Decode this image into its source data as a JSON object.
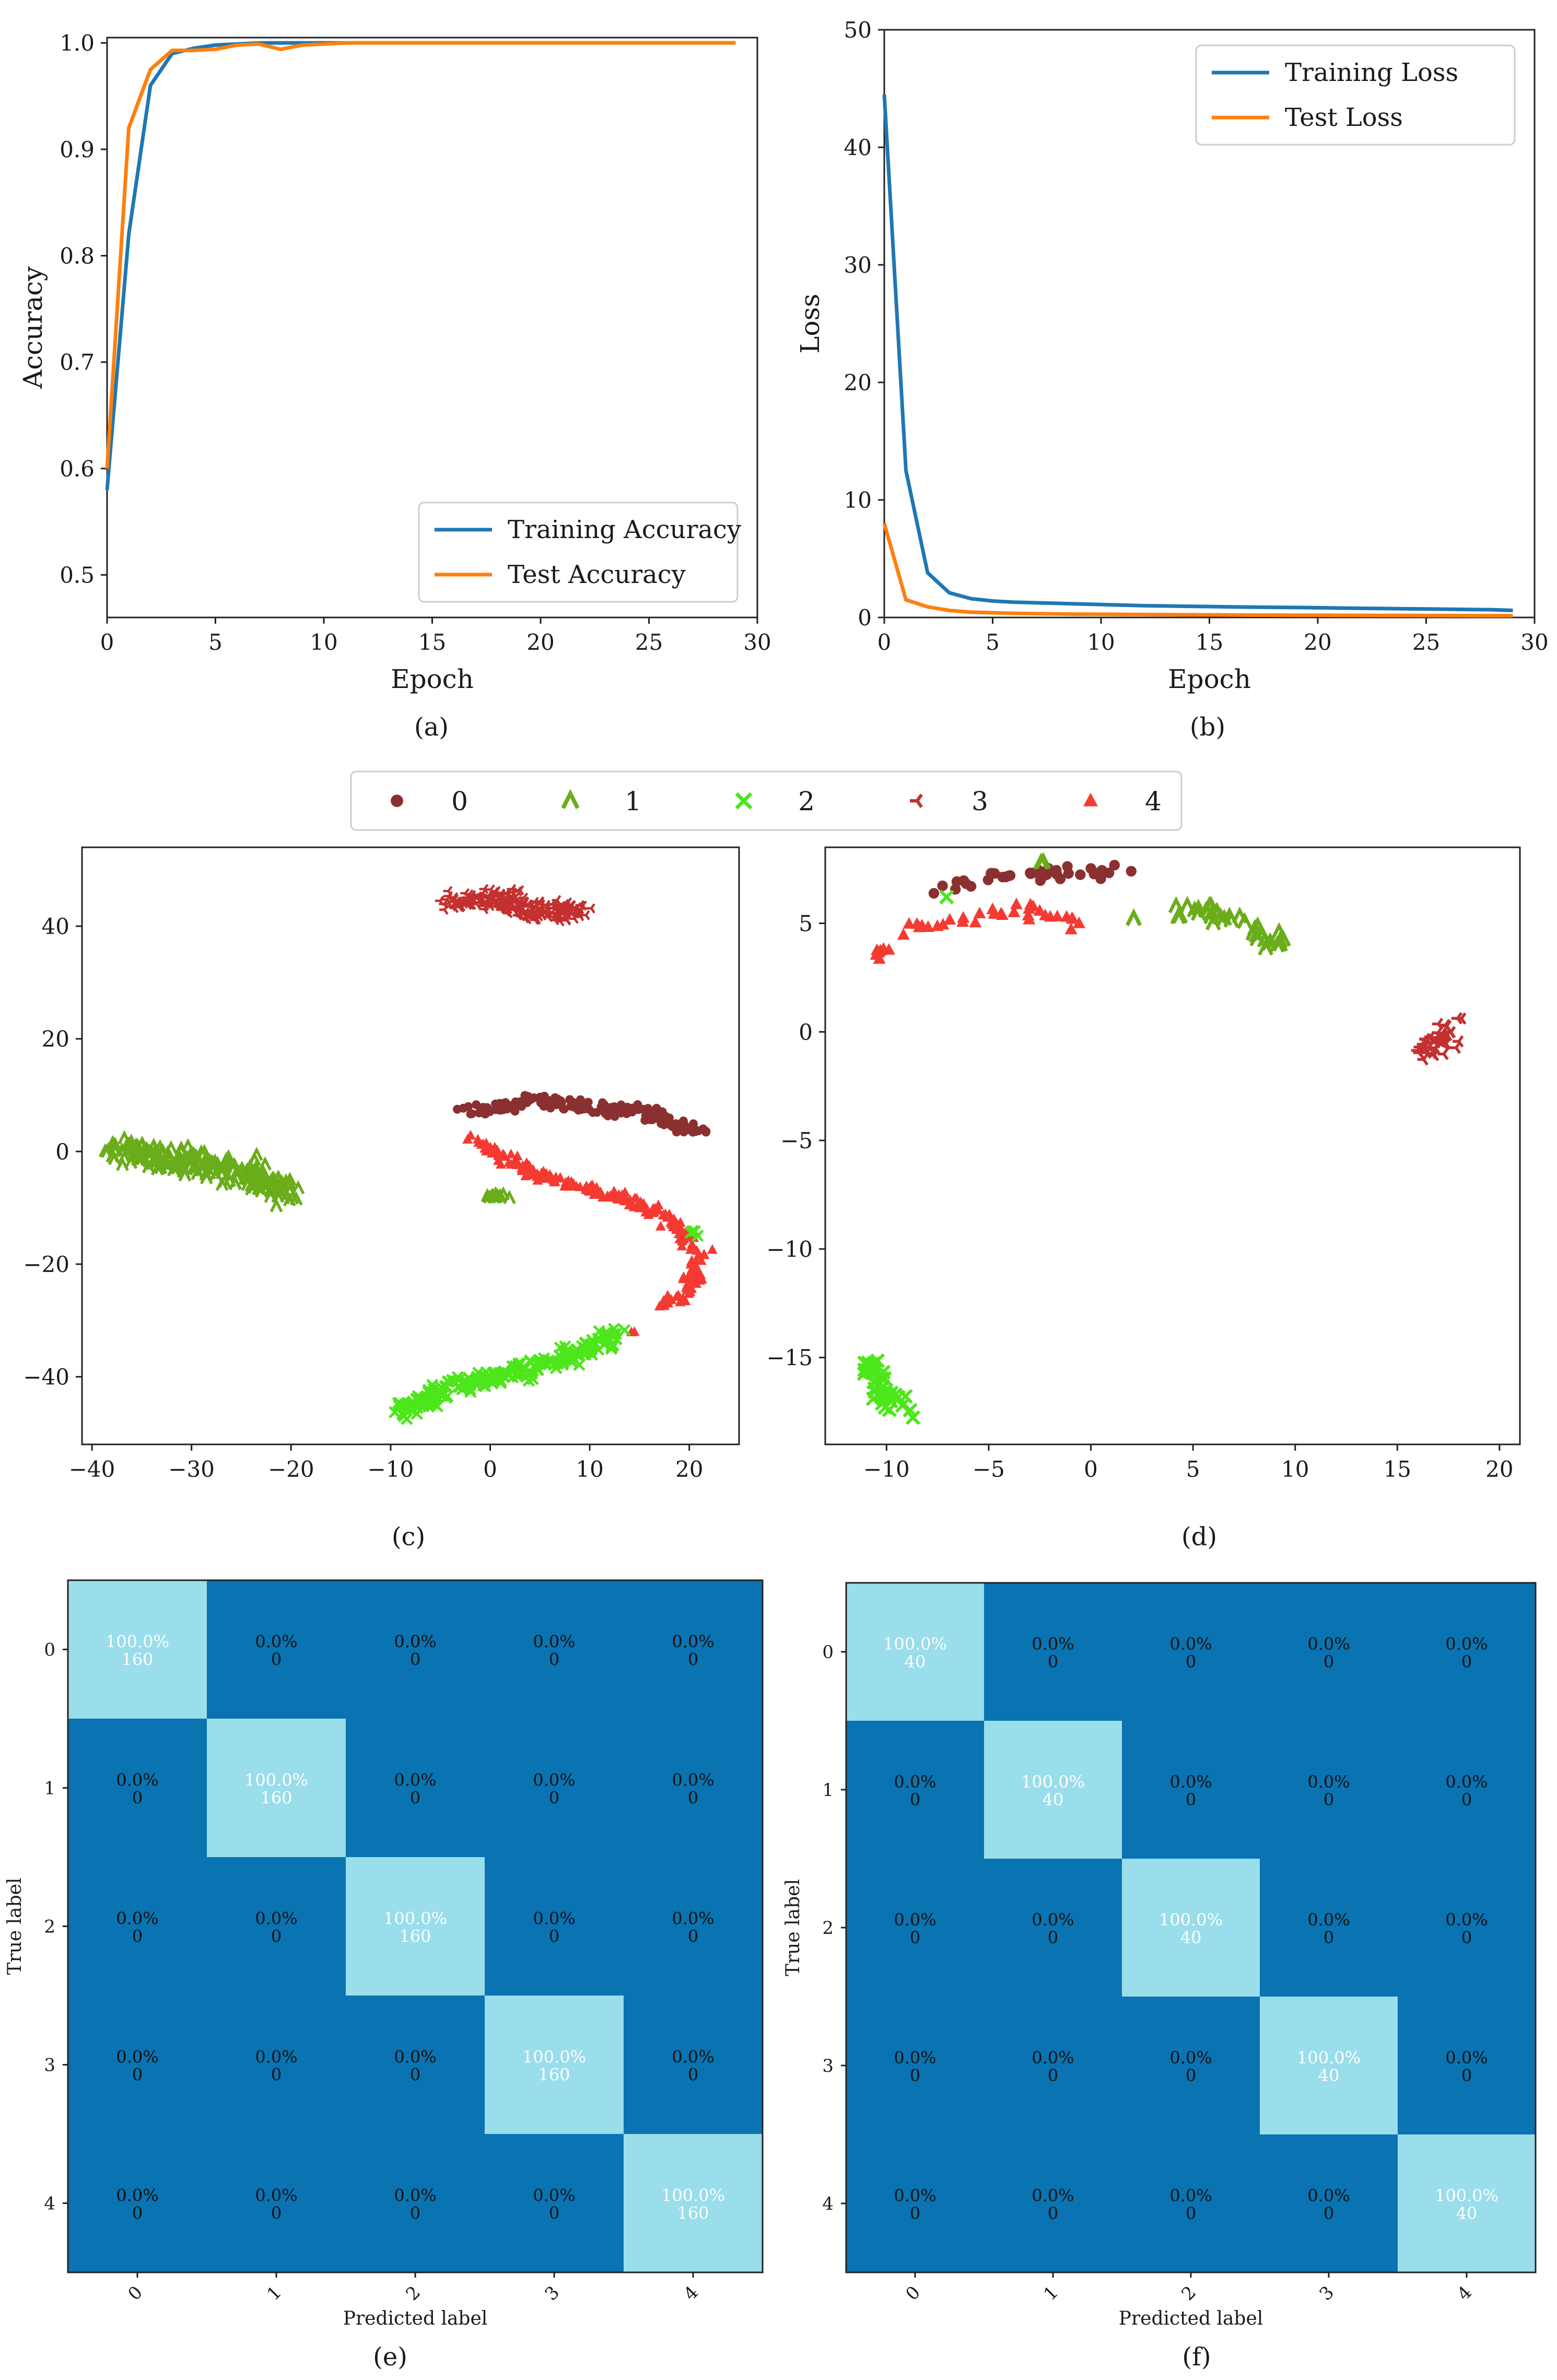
{
  "colors": {
    "training": "#1f77b4",
    "test": "#ff7f0e",
    "class_0": "#8b3030",
    "class_1": "#6aad1a",
    "class_2": "#4ce61a",
    "class_3": "#c43030",
    "class_4": "#f53a32",
    "cm_dark": "#0a73b1",
    "cm_light": "#9addeb"
  },
  "chart_data": [
    {
      "id": "a",
      "type": "line",
      "caption": "(a)",
      "xlabel": "Epoch",
      "ylabel": "Accuracy",
      "xlim": [
        0,
        30
      ],
      "ylim": [
        0.46,
        1.005
      ],
      "xticks": [
        0,
        5,
        10,
        15,
        20,
        25,
        30
      ],
      "yticks": [
        0.5,
        0.6,
        0.7,
        0.8,
        0.9,
        1.0
      ],
      "ytick_labels": [
        "0.5",
        "0.6",
        "0.7",
        "0.8",
        "0.9",
        "1.0"
      ],
      "legend_position": "lower-right",
      "series": [
        {
          "name": "Training Accuracy",
          "color_key": "training",
          "x": [
            0,
            1,
            2,
            3,
            4,
            5,
            6,
            7,
            8,
            9,
            10,
            11,
            12,
            13,
            14,
            15,
            16,
            17,
            18,
            19,
            20,
            21,
            22,
            23,
            24,
            25,
            26,
            27,
            28,
            29
          ],
          "values": [
            0.58,
            0.82,
            0.96,
            0.99,
            0.995,
            0.998,
            0.999,
            1.0,
            1.0,
            1.0,
            1.0,
            1.0,
            1.0,
            1.0,
            1.0,
            1.0,
            1.0,
            1.0,
            1.0,
            1.0,
            1.0,
            1.0,
            1.0,
            1.0,
            1.0,
            1.0,
            1.0,
            1.0,
            1.0,
            1.0
          ]
        },
        {
          "name": "Test Accuracy",
          "color_key": "test",
          "x": [
            0,
            1,
            2,
            3,
            4,
            5,
            6,
            7,
            8,
            9,
            10,
            11,
            12,
            13,
            14,
            15,
            16,
            17,
            18,
            19,
            20,
            21,
            22,
            23,
            24,
            25,
            26,
            27,
            28,
            29
          ],
          "values": [
            0.6,
            0.92,
            0.975,
            0.993,
            0.993,
            0.994,
            0.998,
            0.999,
            0.994,
            0.998,
            0.999,
            1.0,
            1.0,
            1.0,
            1.0,
            1.0,
            1.0,
            1.0,
            1.0,
            1.0,
            1.0,
            1.0,
            1.0,
            1.0,
            1.0,
            1.0,
            1.0,
            1.0,
            1.0,
            1.0
          ]
        }
      ]
    },
    {
      "id": "b",
      "type": "line",
      "caption": "(b)",
      "xlabel": "Epoch",
      "ylabel": "Loss",
      "xlim": [
        0,
        30
      ],
      "ylim": [
        0,
        50
      ],
      "xticks": [
        0,
        5,
        10,
        15,
        20,
        25,
        30
      ],
      "yticks": [
        0,
        10,
        20,
        30,
        40,
        50
      ],
      "ytick_labels": [
        "0",
        "10",
        "20",
        "30",
        "40",
        "50"
      ],
      "legend_position": "upper-right",
      "series": [
        {
          "name": "Training Loss",
          "color_key": "training",
          "x": [
            0,
            1,
            2,
            3,
            4,
            5,
            6,
            7,
            8,
            9,
            10,
            11,
            12,
            13,
            14,
            15,
            16,
            17,
            18,
            19,
            20,
            21,
            22,
            23,
            24,
            25,
            26,
            27,
            28,
            29
          ],
          "values": [
            44.5,
            12.5,
            3.8,
            2.1,
            1.6,
            1.4,
            1.3,
            1.25,
            1.2,
            1.15,
            1.1,
            1.05,
            1.0,
            0.98,
            0.95,
            0.93,
            0.9,
            0.88,
            0.86,
            0.85,
            0.83,
            0.8,
            0.78,
            0.76,
            0.74,
            0.72,
            0.7,
            0.68,
            0.66,
            0.6
          ]
        },
        {
          "name": "Test Loss",
          "color_key": "test",
          "x": [
            0,
            1,
            2,
            3,
            4,
            5,
            6,
            7,
            8,
            9,
            10,
            11,
            12,
            13,
            14,
            15,
            16,
            17,
            18,
            19,
            20,
            21,
            22,
            23,
            24,
            25,
            26,
            27,
            28,
            29
          ],
          "values": [
            8.0,
            1.5,
            0.9,
            0.6,
            0.45,
            0.4,
            0.35,
            0.32,
            0.3,
            0.28,
            0.27,
            0.26,
            0.25,
            0.24,
            0.23,
            0.22,
            0.21,
            0.2,
            0.2,
            0.19,
            0.19,
            0.18,
            0.18,
            0.17,
            0.17,
            0.16,
            0.16,
            0.15,
            0.15,
            0.15
          ]
        }
      ]
    },
    {
      "id": "c",
      "type": "scatter",
      "caption": "(c)",
      "xlim": [
        -41,
        25
      ],
      "ylim": [
        -52,
        54
      ],
      "xticks": [
        -40,
        -30,
        -20,
        -10,
        0,
        10,
        20
      ],
      "xtick_labels": [
        "−40",
        "−30",
        "−20",
        "−10",
        "0",
        "10",
        "20"
      ],
      "yticks": [
        -40,
        -20,
        0,
        20,
        40
      ],
      "ytick_labels": [
        "−40",
        "−20",
        "0",
        "20",
        "40"
      ],
      "clusters": [
        {
          "class": "0",
          "path": [
            [
              -2,
              7
            ],
            [
              4,
              9
            ],
            [
              10,
              8
            ],
            [
              16,
              7
            ],
            [
              21,
              3
            ]
          ],
          "count": 200,
          "spread": [
            1.2,
            1.1
          ]
        },
        {
          "class": "3",
          "path": [
            [
              -4,
              44
            ],
            [
              1,
              45
            ],
            [
              5,
              42
            ],
            [
              9,
              43
            ]
          ],
          "count": 220,
          "spread": [
            1.8,
            1.8
          ]
        },
        {
          "class": "1",
          "path": [
            [
              -38,
              0
            ],
            [
              -30,
              -2
            ],
            [
              -24,
              -4
            ],
            [
              -20,
              -7
            ]
          ],
          "count": 260,
          "spread": [
            1.2,
            2.4
          ]
        },
        {
          "class": "1",
          "path": [
            [
              -0.5,
              -8
            ],
            [
              1.5,
              -8
            ]
          ],
          "count": 14,
          "spread": [
            0.4,
            0.4
          ]
        },
        {
          "class": "4",
          "path": [
            [
              -2,
              2
            ],
            [
              6,
              -5
            ],
            [
              13,
              -8
            ],
            [
              18,
              -12
            ],
            [
              21,
              -18
            ],
            [
              20,
              -25
            ],
            [
              17,
              -27
            ]
          ],
          "count": 220,
          "spread": [
            0.9,
            0.9
          ]
        },
        {
          "class": "4",
          "path": [
            [
              14,
              -32
            ],
            [
              14.3,
              -32
            ]
          ],
          "count": 2,
          "spread": [
            0.2,
            0.2
          ]
        },
        {
          "class": "2",
          "path": [
            [
              -9,
              -46
            ],
            [
              -4,
              -42
            ],
            [
              3,
              -39
            ],
            [
              9,
              -36
            ],
            [
              13,
              -32
            ]
          ],
          "count": 230,
          "spread": [
            1.4,
            1.6
          ]
        },
        {
          "class": "2",
          "path": [
            [
              20,
              -14
            ],
            [
              21,
              -15
            ]
          ],
          "count": 4,
          "spread": [
            0.4,
            0.4
          ]
        }
      ]
    },
    {
      "id": "d",
      "type": "scatter",
      "caption": "(d)",
      "xlim": [
        -13,
        21
      ],
      "ylim": [
        -19,
        8.5
      ],
      "xticks": [
        -10,
        -5,
        0,
        5,
        10,
        15,
        20
      ],
      "xtick_labels": [
        "−10",
        "−5",
        "0",
        "5",
        "10",
        "15",
        "20"
      ],
      "yticks": [
        -15,
        -10,
        -5,
        0,
        5
      ],
      "ytick_labels": [
        "−15",
        "−10",
        "−5",
        "0",
        "5"
      ],
      "clusters": [
        {
          "class": "0",
          "path": [
            [
              -7.5,
              6.6
            ],
            [
              -5,
              7.1
            ],
            [
              -3,
              7.3
            ],
            [
              0,
              7.4
            ],
            [
              2.5,
              7.4
            ]
          ],
          "count": 40,
          "spread": [
            0.4,
            0.3
          ]
        },
        {
          "class": "1",
          "path": [
            [
              -2.5,
              7.8
            ],
            [
              -2.3,
              7.8
            ]
          ],
          "count": 2,
          "spread": [
            0.1,
            0.1
          ]
        },
        {
          "class": "1",
          "path": [
            [
              2,
              5.2
            ],
            [
              2.2,
              5.2
            ]
          ],
          "count": 2,
          "spread": [
            0.1,
            0.1
          ]
        },
        {
          "class": "1",
          "path": [
            [
              4,
              5.6
            ],
            [
              6,
              5.5
            ],
            [
              7.5,
              5.2
            ],
            [
              8.5,
              4.3
            ],
            [
              9.5,
              4
            ]
          ],
          "count": 40,
          "spread": [
            0.4,
            0.4
          ]
        },
        {
          "class": "2",
          "path": [
            [
              -7.3,
              6.3
            ],
            [
              -7.1,
              6.3
            ]
          ],
          "count": 1,
          "spread": [
            0.1,
            0.1
          ]
        },
        {
          "class": "4",
          "path": [
            [
              -10.5,
              3.5
            ],
            [
              -8,
              5
            ],
            [
              -5,
              5.5
            ],
            [
              -2,
              5.5
            ],
            [
              -0.5,
              5
            ]
          ],
          "count": 40,
          "spread": [
            0.3,
            0.35
          ]
        },
        {
          "class": "3",
          "path": [
            [
              16,
              -1
            ],
            [
              17,
              -0.5
            ],
            [
              18,
              0.2
            ]
          ],
          "count": 40,
          "spread": [
            0.5,
            0.6
          ]
        },
        {
          "class": "2",
          "path": [
            [
              -11,
              -15
            ],
            [
              -10,
              -16.5
            ],
            [
              -9,
              -17.5
            ]
          ],
          "count": 40,
          "spread": [
            0.5,
            0.6
          ]
        }
      ]
    },
    {
      "id": "e",
      "type": "heatmap",
      "caption": "(e)",
      "xlabel": "Predicted label",
      "ylabel": "True label",
      "categories": [
        "0",
        "1",
        "2",
        "3",
        "4"
      ],
      "cells": [
        [
          [
            "100.0%",
            "160"
          ],
          [
            "0.0%",
            "0"
          ],
          [
            "0.0%",
            "0"
          ],
          [
            "0.0%",
            "0"
          ],
          [
            "0.0%",
            "0"
          ]
        ],
        [
          [
            "0.0%",
            "0"
          ],
          [
            "100.0%",
            "160"
          ],
          [
            "0.0%",
            "0"
          ],
          [
            "0.0%",
            "0"
          ],
          [
            "0.0%",
            "0"
          ]
        ],
        [
          [
            "0.0%",
            "0"
          ],
          [
            "0.0%",
            "0"
          ],
          [
            "100.0%",
            "160"
          ],
          [
            "0.0%",
            "0"
          ],
          [
            "0.0%",
            "0"
          ]
        ],
        [
          [
            "0.0%",
            "0"
          ],
          [
            "0.0%",
            "0"
          ],
          [
            "0.0%",
            "0"
          ],
          [
            "100.0%",
            "160"
          ],
          [
            "0.0%",
            "0"
          ]
        ],
        [
          [
            "0.0%",
            "0"
          ],
          [
            "0.0%",
            "0"
          ],
          [
            "0.0%",
            "0"
          ],
          [
            "0.0%",
            "0"
          ],
          [
            "100.0%",
            "160"
          ]
        ]
      ]
    },
    {
      "id": "f",
      "type": "heatmap",
      "caption": "(f)",
      "xlabel": "Predicted label",
      "ylabel": "True label",
      "categories": [
        "0",
        "1",
        "2",
        "3",
        "4"
      ],
      "cells": [
        [
          [
            "100.0%",
            "40"
          ],
          [
            "0.0%",
            "0"
          ],
          [
            "0.0%",
            "0"
          ],
          [
            "0.0%",
            "0"
          ],
          [
            "0.0%",
            "0"
          ]
        ],
        [
          [
            "0.0%",
            "0"
          ],
          [
            "100.0%",
            "40"
          ],
          [
            "0.0%",
            "0"
          ],
          [
            "0.0%",
            "0"
          ],
          [
            "0.0%",
            "0"
          ]
        ],
        [
          [
            "0.0%",
            "0"
          ],
          [
            "0.0%",
            "0"
          ],
          [
            "100.0%",
            "40"
          ],
          [
            "0.0%",
            "0"
          ],
          [
            "0.0%",
            "0"
          ]
        ],
        [
          [
            "0.0%",
            "0"
          ],
          [
            "0.0%",
            "0"
          ],
          [
            "0.0%",
            "0"
          ],
          [
            "100.0%",
            "40"
          ],
          [
            "0.0%",
            "0"
          ]
        ],
        [
          [
            "0.0%",
            "0"
          ],
          [
            "0.0%",
            "0"
          ],
          [
            "0.0%",
            "0"
          ],
          [
            "0.0%",
            "0"
          ],
          [
            "100.0%",
            "40"
          ]
        ]
      ]
    }
  ],
  "scatter_legend": [
    {
      "label": "0",
      "marker": "dot",
      "color_key": "class_0"
    },
    {
      "label": "1",
      "marker": "caret",
      "color_key": "class_1"
    },
    {
      "label": "2",
      "marker": "x",
      "color_key": "class_2"
    },
    {
      "label": "3",
      "marker": "tri",
      "color_key": "class_3"
    },
    {
      "label": "4",
      "marker": "triangle",
      "color_key": "class_4"
    }
  ]
}
